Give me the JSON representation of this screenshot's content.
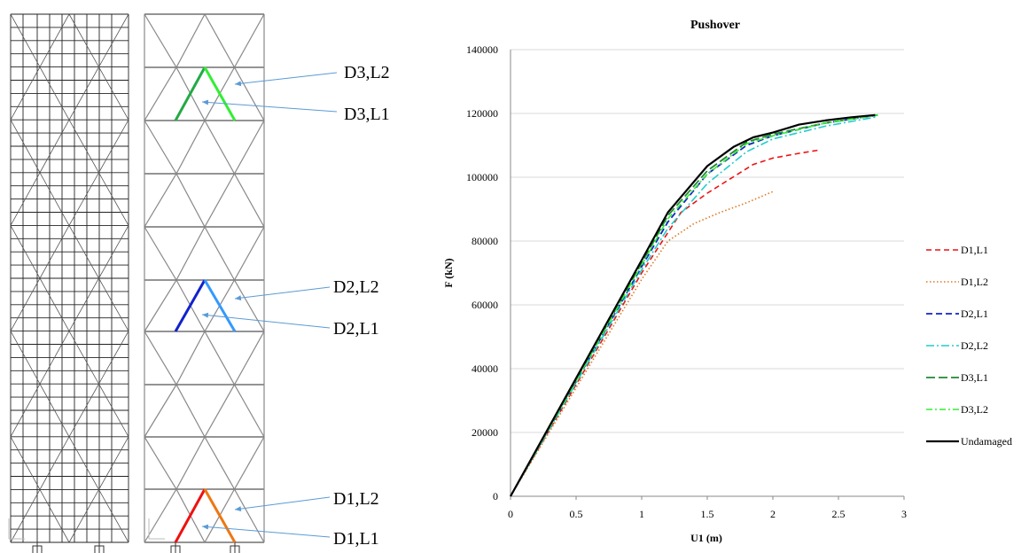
{
  "annotations": [
    {
      "label": "D3,L2"
    },
    {
      "label": "D3,L1"
    },
    {
      "label": "D2,L2"
    },
    {
      "label": "D2,L1"
    },
    {
      "label": "D1,L2"
    },
    {
      "label": "D1,L1"
    }
  ],
  "damage_colors": {
    "D3,L2": "#33ee33",
    "D3,L1": "#22aa44",
    "D2,L2": "#3399ff",
    "D2,L1": "#1122cc",
    "D1,L2": "#ee7711",
    "D1,L1": "#ee1111"
  },
  "chart_data": {
    "type": "line",
    "title": "Pushover",
    "xlabel": "U1 (m)",
    "ylabel": "F (kN)",
    "xlim": [
      0,
      3
    ],
    "ylim": [
      0,
      140000
    ],
    "x_ticks": [
      "0",
      "0.5",
      "1",
      "1.5",
      "2",
      "2.5",
      "3"
    ],
    "y_ticks": [
      "0",
      "20000",
      "40000",
      "60000",
      "80000",
      "100000",
      "120000",
      "140000"
    ],
    "grid": "horizontal",
    "legend_position": "right",
    "series": [
      {
        "name": "D1,L1",
        "color": "#ee1111",
        "dash": "6,4",
        "width": 1.6,
        "x": [
          0,
          0.5,
          1.0,
          1.3,
          1.5,
          1.85,
          2.0,
          2.2,
          2.35
        ],
        "y": [
          0,
          35000,
          70000,
          89000,
          95000,
          104000,
          106000,
          107500,
          108500
        ]
      },
      {
        "name": "D1,L2",
        "color": "#dd7722",
        "dash": "1.5,2.5",
        "width": 1.6,
        "x": [
          0,
          0.5,
          1.0,
          1.2,
          1.4,
          1.6,
          1.8,
          2.0
        ],
        "y": [
          0,
          34000,
          68000,
          80000,
          85500,
          89000,
          92000,
          95500
        ]
      },
      {
        "name": "D2,L1",
        "color": "#1122cc",
        "dash": "7,4",
        "width": 1.8,
        "x": [
          0,
          0.5,
          1.0,
          1.2,
          1.5,
          1.8,
          2.0,
          2.4,
          2.8
        ],
        "y": [
          0,
          36000,
          72000,
          86000,
          101000,
          110000,
          113000,
          117000,
          119500
        ]
      },
      {
        "name": "D2,L2",
        "color": "#22cccc",
        "dash": "9,3,2,3",
        "width": 1.6,
        "x": [
          0,
          0.5,
          1.0,
          1.2,
          1.5,
          1.8,
          2.0,
          2.4,
          2.8
        ],
        "y": [
          0,
          35500,
          71000,
          84000,
          98000,
          108000,
          112000,
          116000,
          119000
        ]
      },
      {
        "name": "D3,L1",
        "color": "#228833",
        "dash": "10,4",
        "width": 1.8,
        "x": [
          0,
          0.5,
          1.0,
          1.2,
          1.5,
          1.8,
          2.0,
          2.4,
          2.8
        ],
        "y": [
          0,
          36500,
          73000,
          88000,
          102000,
          111000,
          113500,
          117000,
          119500
        ]
      },
      {
        "name": "D3,L2",
        "color": "#33ee33",
        "dash": "7,3,2,3",
        "width": 1.6,
        "x": [
          0,
          0.5,
          1.0,
          1.2,
          1.5,
          1.8,
          2.0,
          2.4,
          2.8
        ],
        "y": [
          0,
          36200,
          72500,
          87000,
          101000,
          110500,
          113000,
          117000,
          119500
        ]
      },
      {
        "name": "Undamaged",
        "color": "#000000",
        "dash": "",
        "width": 2.2,
        "x": [
          0,
          0.5,
          1.0,
          1.2,
          1.5,
          1.7,
          1.85,
          2.0,
          2.2,
          2.4,
          2.6,
          2.78
        ],
        "y": [
          0,
          37000,
          74000,
          89000,
          103500,
          109500,
          112500,
          114000,
          116500,
          117800,
          118800,
          119500
        ]
      }
    ]
  }
}
